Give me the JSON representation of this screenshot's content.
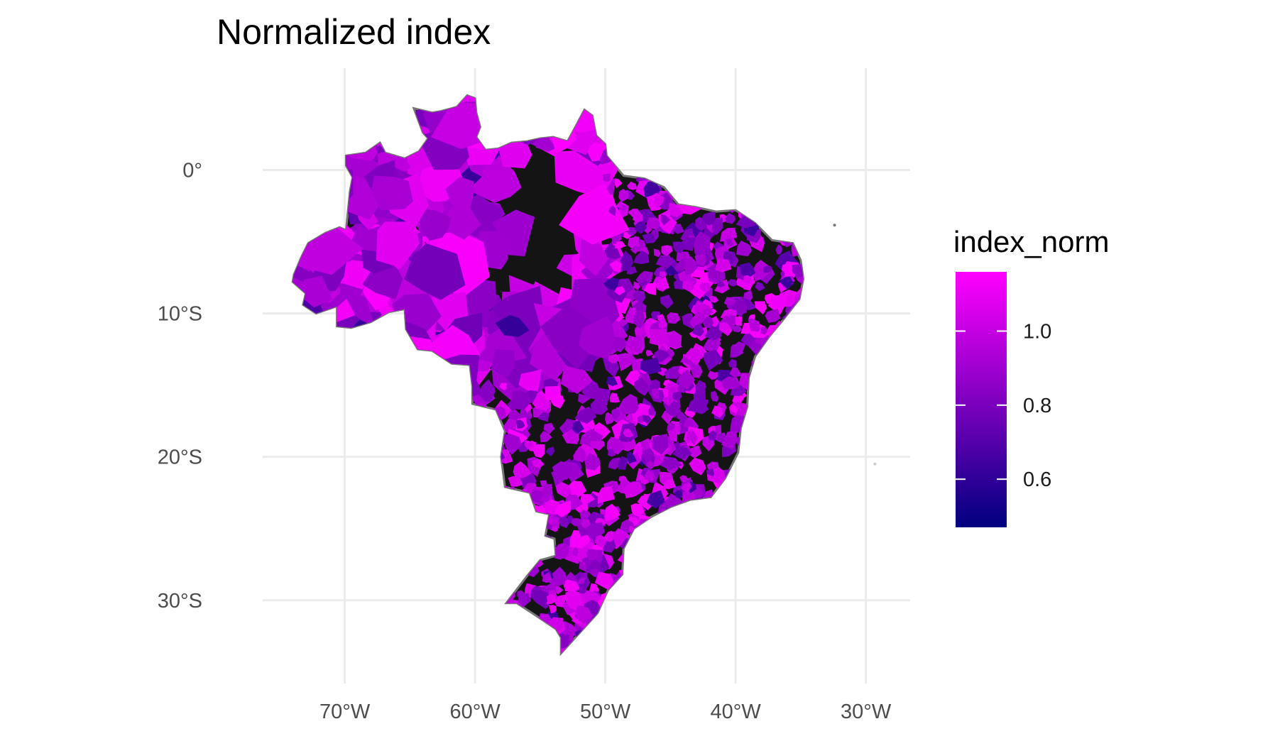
{
  "chart_data": {
    "type": "choropleth-map",
    "title": "Normalized index",
    "xlabel": "",
    "ylabel": "",
    "x_axis": {
      "ticks": [
        -70,
        -60,
        -50,
        -40,
        -30
      ],
      "tick_labels": [
        "70°W",
        "60°W",
        "50°W",
        "40°W",
        "30°W"
      ],
      "range": [
        -76.3,
        -26.6
      ]
    },
    "y_axis": {
      "ticks": [
        0,
        -10,
        -20,
        -30
      ],
      "tick_labels": [
        "0°",
        "10°S",
        "20°S",
        "30°S"
      ],
      "range": [
        -35.8,
        7.1
      ]
    },
    "grid": true,
    "legend": {
      "title": "index_norm",
      "position": "right",
      "range": [
        0.47,
        1.16
      ],
      "breaks": [
        0.6,
        0.8,
        1.0
      ],
      "break_labels": [
        "0.6",
        "0.8",
        "1.0"
      ],
      "low_color": "#000080",
      "high_color": "#ff00ff"
    },
    "colors": {
      "missing": "#141414",
      "border": "#777777",
      "grid": "#ebebeb"
    },
    "region": "Brazil (municipalities)"
  }
}
